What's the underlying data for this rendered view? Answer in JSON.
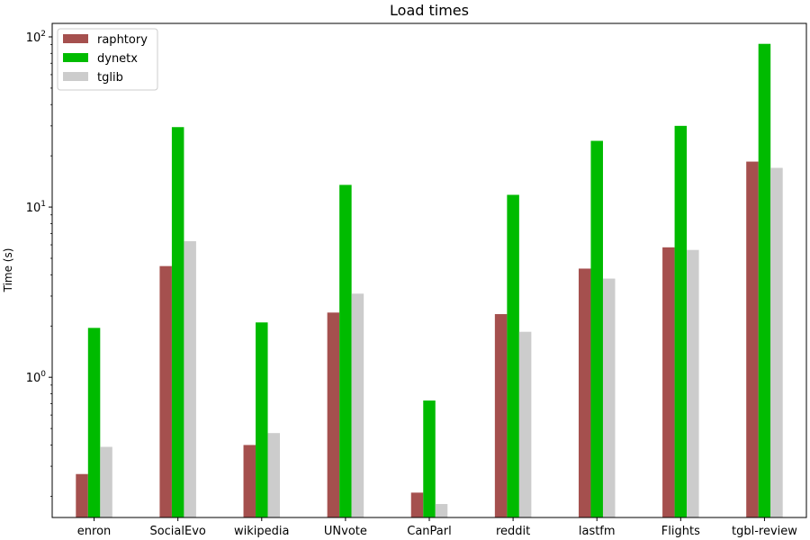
{
  "chart_data": {
    "type": "bar",
    "title": "Load times",
    "xlabel": "",
    "ylabel": "Time (s)",
    "yscale": "log",
    "ylim": [
      0.15,
      120
    ],
    "grid": false,
    "legend_position": "top-left",
    "categories": [
      "enron",
      "SocialEvo",
      "wikipedia",
      "UNvote",
      "CanParl",
      "reddit",
      "lastfm",
      "Flights",
      "tgbl-review"
    ],
    "series": [
      {
        "name": "raphtory",
        "color": "#a5504e",
        "values": [
          0.27,
          4.5,
          0.4,
          2.4,
          0.21,
          2.35,
          4.35,
          5.8,
          18.5
        ]
      },
      {
        "name": "dynetx",
        "color": "#00bb00",
        "values": [
          1.95,
          29.5,
          2.1,
          13.5,
          0.73,
          11.8,
          24.5,
          30.0,
          91.0
        ]
      },
      {
        "name": "tglib",
        "color": "#cccccc",
        "values": [
          0.39,
          6.3,
          0.47,
          3.1,
          0.18,
          1.85,
          3.8,
          5.6,
          17.0
        ]
      }
    ],
    "y_ticks": [
      {
        "value": 1,
        "base": "10",
        "exp": "0"
      },
      {
        "value": 10,
        "base": "10",
        "exp": "1"
      },
      {
        "value": 100,
        "base": "10",
        "exp": "2"
      }
    ]
  }
}
